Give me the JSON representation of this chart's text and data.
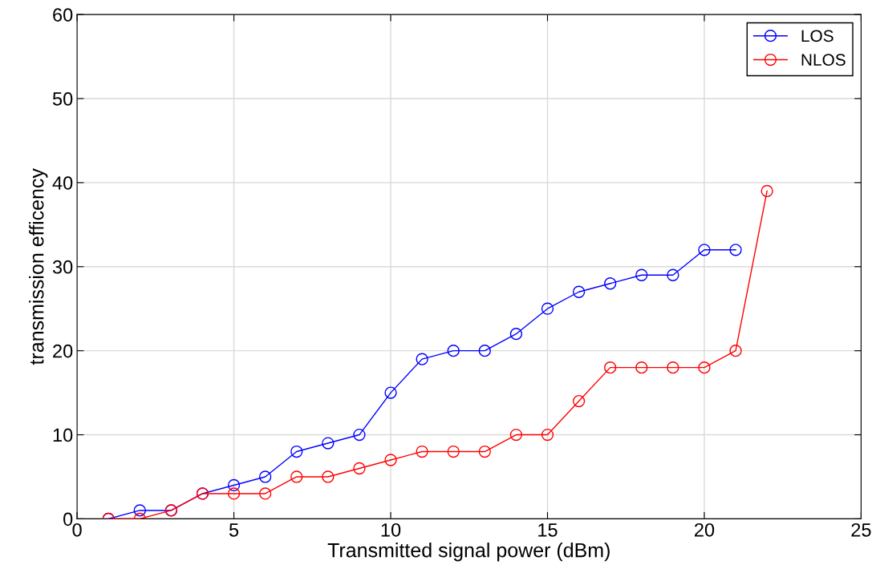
{
  "chart_data": {
    "type": "line",
    "xlabel": "Transmitted signal power (dBm)",
    "ylabel": "transmission efficency",
    "x": [
      1,
      2,
      3,
      4,
      5,
      6,
      7,
      8,
      9,
      10,
      11,
      12,
      13,
      14,
      15,
      16,
      17,
      18,
      19,
      20,
      21,
      22
    ],
    "series": [
      {
        "name": "LOS",
        "color": "#0000ff",
        "values": [
          0,
          1,
          1,
          3,
          4,
          5,
          8,
          9,
          10,
          15,
          19,
          20,
          20,
          22,
          25,
          27,
          28,
          29,
          29,
          32,
          32,
          null
        ]
      },
      {
        "name": "NLOS",
        "color": "#ff0000",
        "values": [
          0,
          0,
          1,
          3,
          3,
          3,
          5,
          5,
          6,
          7,
          8,
          8,
          8,
          10,
          10,
          14,
          18,
          18,
          18,
          18,
          20,
          39
        ]
      }
    ],
    "xlim": [
      0,
      25
    ],
    "xticks": [
      0,
      5,
      10,
      15,
      20,
      25
    ],
    "ylim": [
      0,
      60
    ],
    "yticks": [
      0,
      10,
      20,
      30,
      40,
      50,
      60
    ],
    "grid": true,
    "legend": "top right",
    "marker": "circle",
    "line_style": "solid"
  }
}
